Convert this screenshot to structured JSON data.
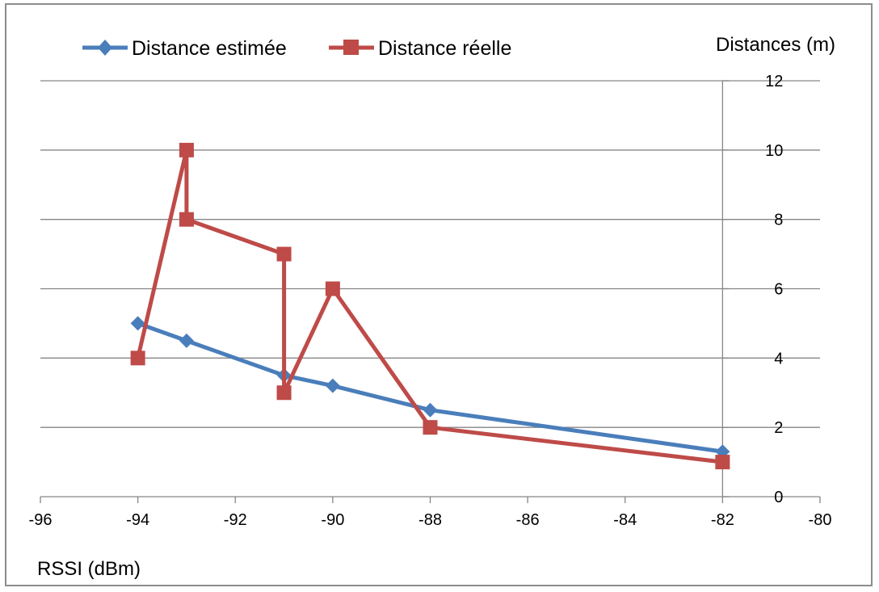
{
  "chart_data": {
    "type": "line",
    "xlabel": "RSSI (dBm)",
    "ylabel": "Distances (m)",
    "xlim": [
      -96,
      -80
    ],
    "ylim": [
      0,
      12
    ],
    "x_ticks": [
      -96,
      -94,
      -92,
      -90,
      -88,
      -86,
      -84,
      -82,
      -80
    ],
    "y_ticks": [
      0,
      2,
      4,
      6,
      8,
      10,
      12
    ],
    "grid": "horizontal",
    "legend_position": "top",
    "series": [
      {
        "name": "Distance estimée",
        "color": "#4a7ebb",
        "marker": "diamond",
        "x": [
          -94,
          -93,
          -91,
          -90,
          -88,
          -82
        ],
        "y": [
          5,
          4.5,
          3.5,
          3.2,
          2.5,
          1.3
        ]
      },
      {
        "name": "Distance réelle",
        "color": "#be4b48",
        "marker": "square",
        "x": [
          -94,
          -93,
          -93,
          -91,
          -91,
          -90,
          -88,
          -82
        ],
        "y": [
          4,
          10,
          8,
          7,
          3,
          6,
          2,
          1
        ]
      }
    ]
  }
}
